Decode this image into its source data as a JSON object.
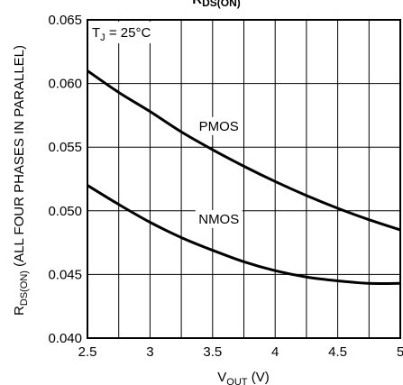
{
  "chart_data": {
    "type": "line",
    "title": "R",
    "title_sub": "DS(ON)",
    "xlabel": "V",
    "xlabel_sub": "OUT",
    "xlabel_unit": " (V)",
    "ylabel": "R",
    "ylabel_sub": "DS(ON)",
    "ylabel_rest": " (ALL FOUR PHASES IN PARALLEL)",
    "xlim": [
      2.5,
      5
    ],
    "ylim": [
      0.04,
      0.065
    ],
    "x_ticks": [
      2.5,
      3,
      3.5,
      4,
      4.5,
      5
    ],
    "x_tick_labels": [
      "2.5",
      "3",
      "3.5",
      "4",
      "4.5",
      "5"
    ],
    "y_ticks": [
      0.04,
      0.045,
      0.05,
      0.055,
      0.06,
      0.065
    ],
    "y_tick_labels": [
      "0.040",
      "0.045",
      "0.050",
      "0.055",
      "0.060",
      "0.065"
    ],
    "grid": true,
    "annotation": {
      "main": "T",
      "sub": "J",
      "rest": " = 25°C"
    },
    "series": [
      {
        "name": "PMOS",
        "label_at": [
          3.55,
          0.0563
        ],
        "x": [
          2.5,
          2.75,
          3.0,
          3.25,
          3.5,
          3.75,
          4.0,
          4.25,
          4.5,
          4.75,
          5.0
        ],
        "y": [
          0.061,
          0.0593,
          0.0578,
          0.0562,
          0.0548,
          0.0535,
          0.0523,
          0.0512,
          0.0502,
          0.0493,
          0.0485
        ]
      },
      {
        "name": "NMOS",
        "label_at": [
          3.55,
          0.049
        ],
        "x": [
          2.5,
          2.75,
          3.0,
          3.25,
          3.5,
          3.75,
          4.0,
          4.25,
          4.5,
          4.75,
          5.0
        ],
        "y": [
          0.052,
          0.0505,
          0.0491,
          0.0479,
          0.0469,
          0.046,
          0.0453,
          0.0448,
          0.0445,
          0.0443,
          0.0443
        ]
      }
    ]
  }
}
